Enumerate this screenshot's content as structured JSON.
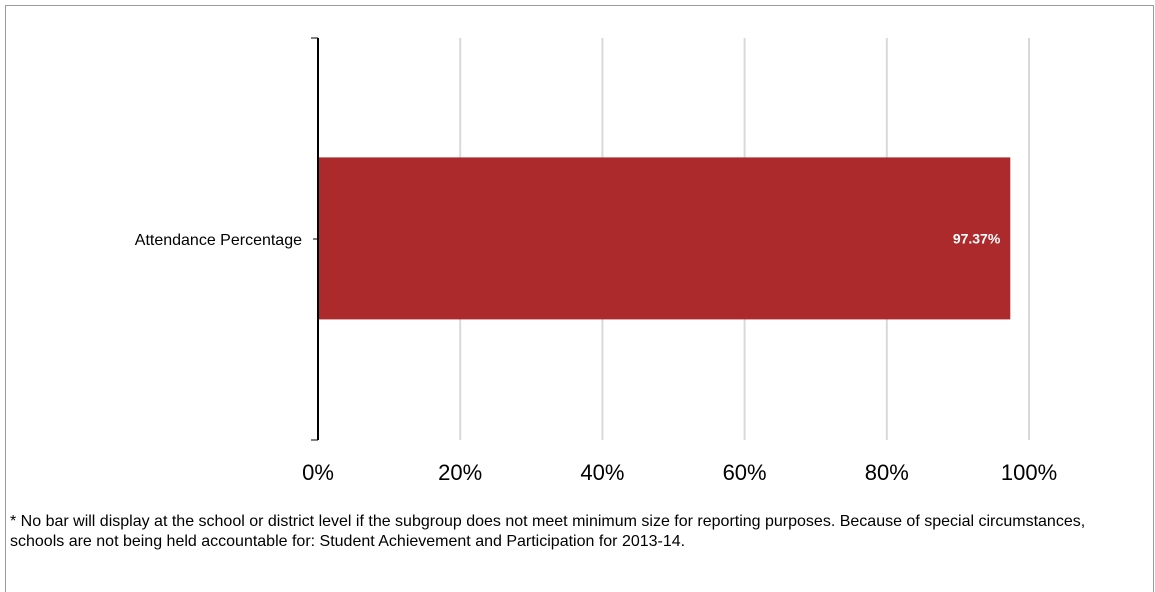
{
  "chart_data": {
    "type": "bar",
    "orientation": "horizontal",
    "categories": [
      "Attendance Percentage"
    ],
    "values": [
      97.37
    ],
    "data_labels": [
      "97.37%"
    ],
    "xlim": [
      0,
      100
    ],
    "x_ticks": [
      0,
      20,
      40,
      60,
      80,
      100
    ],
    "x_tick_labels": [
      "0%",
      "20%",
      "40%",
      "60%",
      "80%",
      "100%"
    ],
    "grid": true,
    "bar_color": "#ad2a2c",
    "grid_color": "#d9d9d9",
    "title": "",
    "xlabel": "",
    "ylabel": ""
  },
  "footnote": "* No bar will display at the school or district level if the subgroup does not meet minimum size for reporting purposes. Because of special circumstances, schools are not being held accountable for: Student Achievement and Participation for 2013-14."
}
